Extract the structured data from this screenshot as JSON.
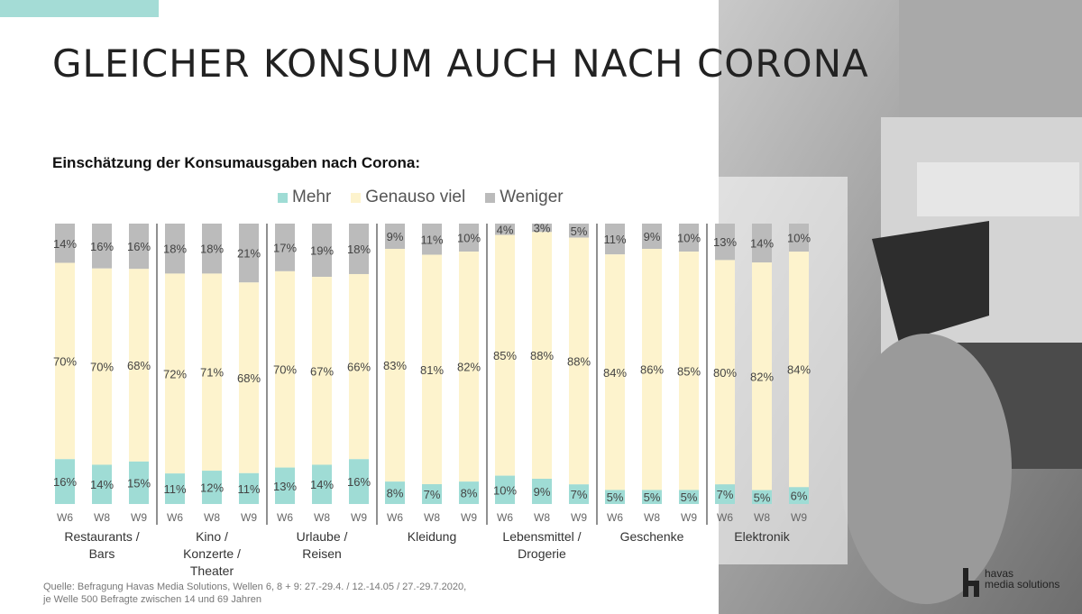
{
  "title": "GLEICHER KONSUM AUCH NACH CORONA",
  "chart_data": {
    "type": "bar",
    "stacked": true,
    "title": "Einschätzung der Konsumausgaben nach Corona:",
    "legend": [
      "Mehr",
      "Genauso viel",
      "Weniger"
    ],
    "colors": {
      "Mehr": "#9fdcd5",
      "Genauso viel": "#fdf3cd",
      "Weniger": "#bbbbbb"
    },
    "ylim": [
      0,
      100
    ],
    "groups": [
      {
        "label": "Restaurants / Bars",
        "bars": [
          {
            "wave": "W6",
            "mehr": 16,
            "genauso": 70,
            "weniger": 14
          },
          {
            "wave": "W8",
            "mehr": 14,
            "genauso": 70,
            "weniger": 16
          },
          {
            "wave": "W9",
            "mehr": 15,
            "genauso": 68,
            "weniger": 16
          }
        ]
      },
      {
        "label": "Kino / Konzerte / Theater",
        "bars": [
          {
            "wave": "W6",
            "mehr": 11,
            "genauso": 72,
            "weniger": 18
          },
          {
            "wave": "W8",
            "mehr": 12,
            "genauso": 71,
            "weniger": 18
          },
          {
            "wave": "W9",
            "mehr": 11,
            "genauso": 68,
            "weniger": 21
          }
        ]
      },
      {
        "label": "Urlaube / Reisen",
        "bars": [
          {
            "wave": "W6",
            "mehr": 13,
            "genauso": 70,
            "weniger": 17
          },
          {
            "wave": "W8",
            "mehr": 14,
            "genauso": 67,
            "weniger": 19
          },
          {
            "wave": "W9",
            "mehr": 16,
            "genauso": 66,
            "weniger": 18
          }
        ]
      },
      {
        "label": "Kleidung",
        "bars": [
          {
            "wave": "W6",
            "mehr": 8,
            "genauso": 83,
            "weniger": 9
          },
          {
            "wave": "W8",
            "mehr": 7,
            "genauso": 81,
            "weniger": 11
          },
          {
            "wave": "W9",
            "mehr": 8,
            "genauso": 82,
            "weniger": 10
          }
        ]
      },
      {
        "label": "Lebensmittel / Drogerie",
        "bars": [
          {
            "wave": "W6",
            "mehr": 10,
            "genauso": 85,
            "weniger": 4
          },
          {
            "wave": "W8",
            "mehr": 9,
            "genauso": 88,
            "weniger": 3
          },
          {
            "wave": "W9",
            "mehr": 7,
            "genauso": 88,
            "weniger": 5
          }
        ]
      },
      {
        "label": "Geschenke",
        "bars": [
          {
            "wave": "W6",
            "mehr": 5,
            "genauso": 84,
            "weniger": 11
          },
          {
            "wave": "W8",
            "mehr": 5,
            "genauso": 86,
            "weniger": 9
          },
          {
            "wave": "W9",
            "mehr": 5,
            "genauso": 85,
            "weniger": 10
          }
        ]
      },
      {
        "label": "Elektronik",
        "bars": [
          {
            "wave": "W6",
            "mehr": 7,
            "genauso": 80,
            "weniger": 13
          },
          {
            "wave": "W8",
            "mehr": 5,
            "genauso": 82,
            "weniger": 14
          },
          {
            "wave": "W9",
            "mehr": 6,
            "genauso": 84,
            "weniger": 10
          }
        ]
      }
    ]
  },
  "source": {
    "line1": "Quelle: Befragung Havas Media Solutions, Wellen 6, 8 + 9: 27.-29.4. / 12.-14.05 / 27.-29.7.2020,",
    "line2": "je Welle 500 Befragte zwischen 14 und 69 Jahren"
  },
  "brand": {
    "line1": "havas",
    "line2": "media solutions"
  }
}
